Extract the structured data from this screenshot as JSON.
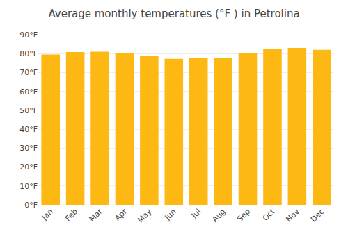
{
  "chart_data": {
    "type": "bar",
    "title": "Average monthly temperatures (°F ) in Petrolina",
    "categories": [
      "Jan",
      "Feb",
      "Mar",
      "Apr",
      "May",
      "Jun",
      "Jul",
      "Aug",
      "Sep",
      "Oct",
      "Nov",
      "Dec"
    ],
    "values": [
      79.5,
      80.8,
      81.0,
      80.4,
      79.0,
      77.2,
      77.5,
      77.5,
      80.3,
      82.4,
      83.0,
      82.0
    ],
    "color": "#FDB813",
    "ylim": [
      0,
      90
    ],
    "yticks": [
      {
        "value": 0,
        "label": "0°F"
      },
      {
        "value": 10,
        "label": "10°F"
      },
      {
        "value": 20,
        "label": "20°F"
      },
      {
        "value": 30,
        "label": "30°F"
      },
      {
        "value": 40,
        "label": "40°F"
      },
      {
        "value": 50,
        "label": "50°F"
      },
      {
        "value": 60,
        "label": "60°F"
      },
      {
        "value": 70,
        "label": "70°F"
      },
      {
        "value": 80,
        "label": "80°F"
      },
      {
        "value": 90,
        "label": "90°F"
      }
    ],
    "grid": true
  }
}
